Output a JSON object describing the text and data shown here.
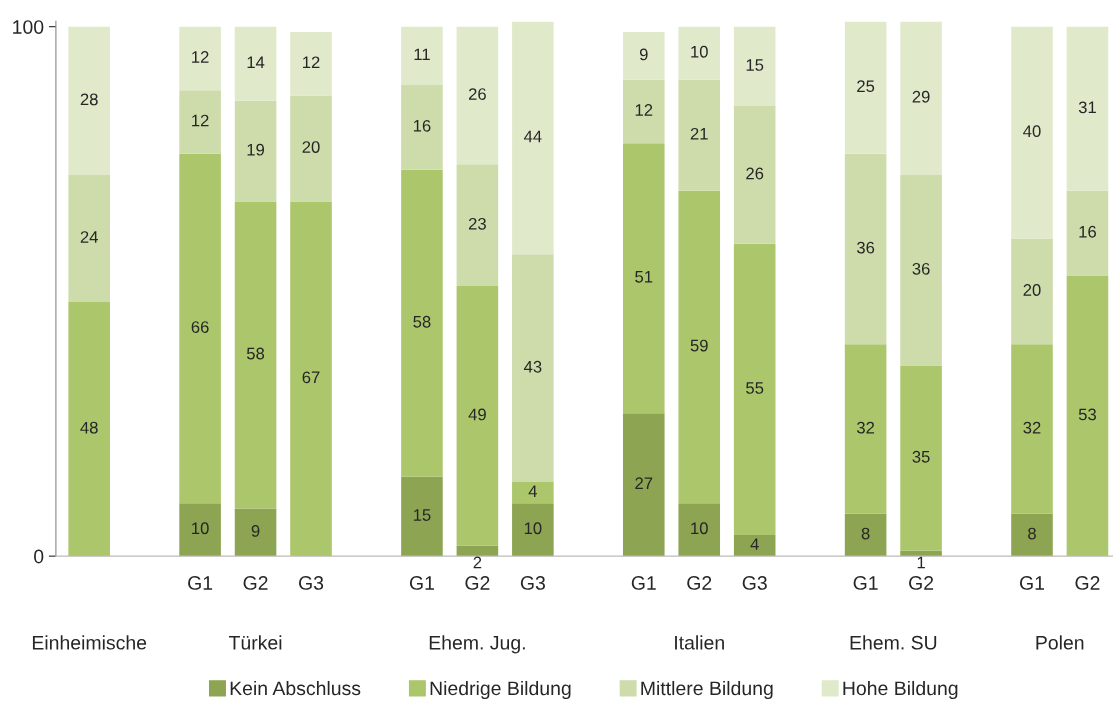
{
  "chart_data": {
    "type": "bar",
    "stacked": true,
    "categories": [
      null,
      null,
      "G1",
      "G2",
      "G3",
      null,
      "G1",
      "G2",
      "G3",
      null,
      "G1",
      "G2",
      "G3",
      null,
      "G1",
      "G2",
      null,
      "G1",
      "G2"
    ],
    "series": [
      {
        "name": "Kein Abschluss",
        "color": "#8da552",
        "values": [
          0,
          null,
          10,
          9,
          0,
          null,
          15,
          2,
          10,
          null,
          27,
          10,
          4,
          null,
          8,
          1,
          null,
          8,
          0
        ],
        "value_labels": [
          null,
          null,
          "10",
          "9",
          null,
          null,
          "15",
          "2",
          "10",
          null,
          "27",
          "10",
          "4",
          null,
          "8",
          "1",
          null,
          "8",
          null
        ]
      },
      {
        "name": "Niedrige Bildung",
        "color": "#acc66c",
        "values": [
          48,
          null,
          66,
          58,
          67,
          null,
          58,
          49,
          4,
          null,
          51,
          59,
          55,
          null,
          32,
          35,
          null,
          32,
          53
        ],
        "value_labels": [
          "48",
          null,
          "66",
          "58",
          "67",
          null,
          "58",
          "49",
          "4",
          null,
          "51",
          "59",
          "55",
          null,
          "32",
          "35",
          null,
          "32",
          "53"
        ]
      },
      {
        "name": "Mittlere Bildung",
        "color": "#cddcaa",
        "values": [
          24,
          null,
          12,
          19,
          20,
          null,
          16,
          23,
          43,
          null,
          12,
          21,
          26,
          null,
          36,
          36,
          null,
          20,
          16
        ],
        "value_labels": [
          "24",
          null,
          "12",
          "19",
          "20",
          null,
          "16",
          "23",
          "43",
          null,
          "12",
          "21",
          "26",
          null,
          "36",
          "36",
          null,
          "20",
          "16"
        ]
      },
      {
        "name": "Hohe Bildung",
        "color": "#e0eacb",
        "values": [
          28,
          null,
          12,
          14,
          12,
          null,
          11,
          26,
          44,
          null,
          9,
          10,
          15,
          null,
          25,
          29,
          null,
          40,
          31
        ],
        "value_labels": [
          "28",
          null,
          "12",
          "14",
          "12",
          null,
          "11",
          "26",
          "44",
          null,
          "9",
          "10",
          "15",
          null,
          "25",
          "29",
          null,
          "40",
          "31"
        ]
      }
    ],
    "annotations": [
      "Einheimische",
      "Türkei",
      "Ehem. Jug.",
      "Italien",
      "Ehem. SU",
      "Polen"
    ],
    "ylim": [
      0,
      101
    ],
    "yticks": [
      0,
      100
    ],
    "grid": false,
    "legend": "bottom"
  }
}
